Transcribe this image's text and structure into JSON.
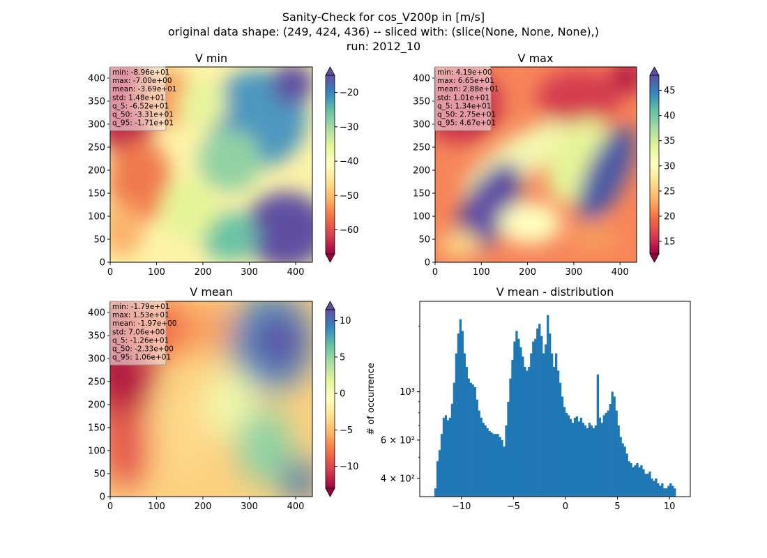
{
  "figure": {
    "title_lines": [
      "Sanity-Check for cos_V200p in [m/s]",
      "original data shape: (249, 424, 436) -- sliced with: (slice(None, None, None),)",
      "run: 2012_10"
    ],
    "colormap": "Spectral"
  },
  "chart_data": [
    {
      "type": "heatmap",
      "title": "V min",
      "xlim": [
        0,
        436
      ],
      "ylim": [
        0,
        424
      ],
      "x_ticks": [
        "0",
        "100",
        "200",
        "300",
        "400"
      ],
      "y_ticks": [
        "0",
        "50",
        "100",
        "150",
        "200",
        "250",
        "300",
        "350",
        "400"
      ],
      "colorbar": {
        "range": [
          -67,
          -15
        ],
        "ticks": [
          "−60",
          "−50",
          "−40",
          "−30",
          "−20"
        ],
        "tick_values": [
          -60,
          -50,
          -40,
          -30,
          -20
        ],
        "extend": "both"
      },
      "stats": [
        "min: -8.96e+01",
        "max: -7.00e+00",
        "mean: -3.69e+01",
        "std: 1.48e+01",
        "q_5: -6.52e+01",
        "q_50: -3.31e+01",
        "q_95: -1.71e+01"
      ]
    },
    {
      "type": "heatmap",
      "title": "V max",
      "xlim": [
        0,
        436
      ],
      "ylim": [
        0,
        424
      ],
      "x_ticks": [
        "0",
        "100",
        "200",
        "300",
        "400"
      ],
      "y_ticks": [
        "0",
        "50",
        "100",
        "150",
        "200",
        "250",
        "300",
        "350",
        "400"
      ],
      "colorbar": {
        "range": [
          12.5,
          48
        ],
        "ticks": [
          "15",
          "20",
          "25",
          "30",
          "35",
          "40",
          "45"
        ],
        "tick_values": [
          15,
          20,
          25,
          30,
          35,
          40,
          45
        ],
        "extend": "both"
      },
      "stats": [
        "min: 4.19e+00",
        "max: 6.65e+01",
        "mean: 2.88e+01",
        "std: 1.01e+01",
        "q_5: 1.34e+01",
        "q_50: 2.75e+01",
        "q_95: 4.67e+01"
      ]
    },
    {
      "type": "heatmap",
      "title": "V mean",
      "xlim": [
        0,
        436
      ],
      "ylim": [
        0,
        424
      ],
      "x_ticks": [
        "0",
        "100",
        "200",
        "300",
        "400"
      ],
      "y_ticks": [
        "0",
        "50",
        "100",
        "150",
        "200",
        "250",
        "300",
        "350",
        "400"
      ],
      "colorbar": {
        "range": [
          -13,
          11.5
        ],
        "ticks": [
          "−10",
          "−5",
          "0",
          "5",
          "10"
        ],
        "tick_values": [
          -10,
          -5,
          0,
          5,
          10
        ],
        "extend": "both"
      },
      "stats": [
        "min: -1.79e+01",
        "max: 1.53e+01",
        "mean: -1.97e+00",
        "std: 7.06e+00",
        "q_5: -1.26e+01",
        "q_50: -2.33e+00",
        "q_95: 1.06e+01"
      ]
    },
    {
      "type": "bar",
      "title": "V mean - distribution",
      "ylabel": "# of occurrence",
      "xlim": [
        -14,
        12
      ],
      "ylim": [
        330,
        2600
      ],
      "yscale": "log",
      "x_ticks": [
        "−10",
        "−5",
        "0",
        "5",
        "10"
      ],
      "x_tick_values": [
        -10,
        -5,
        0,
        5,
        10
      ],
      "y_ticks": [
        "4 × 10²",
        "6 × 10²",
        "10³"
      ],
      "y_tick_values": [
        400,
        600,
        1000
      ],
      "bar_color": "#1f77b4",
      "bins": [
        [
          -12.6,
          360
        ],
        [
          -12.4,
          480
        ],
        [
          -12.2,
          540
        ],
        [
          -12.0,
          640
        ],
        [
          -11.8,
          760
        ],
        [
          -11.6,
          780
        ],
        [
          -11.4,
          740
        ],
        [
          -11.2,
          760
        ],
        [
          -11.0,
          880
        ],
        [
          -10.8,
          1100
        ],
        [
          -10.6,
          1500
        ],
        [
          -10.4,
          1850
        ],
        [
          -10.2,
          2150
        ],
        [
          -10.0,
          1900
        ],
        [
          -9.8,
          1500
        ],
        [
          -9.6,
          1300
        ],
        [
          -9.4,
          1150
        ],
        [
          -9.2,
          1100
        ],
        [
          -9.0,
          1080
        ],
        [
          -8.8,
          1050
        ],
        [
          -8.6,
          920
        ],
        [
          -8.4,
          820
        ],
        [
          -8.2,
          760
        ],
        [
          -8.0,
          720
        ],
        [
          -7.8,
          700
        ],
        [
          -7.6,
          680
        ],
        [
          -7.4,
          660
        ],
        [
          -7.2,
          650
        ],
        [
          -7.0,
          640
        ],
        [
          -6.8,
          640
        ],
        [
          -6.6,
          640
        ],
        [
          -6.4,
          620
        ],
        [
          -6.2,
          600
        ],
        [
          -6.0,
          560
        ],
        [
          -5.8,
          700
        ],
        [
          -5.6,
          900
        ],
        [
          -5.4,
          1150
        ],
        [
          -5.2,
          1400
        ],
        [
          -5.0,
          1700
        ],
        [
          -4.8,
          1900
        ],
        [
          -4.6,
          1750
        ],
        [
          -4.4,
          1600
        ],
        [
          -4.2,
          1450
        ],
        [
          -4.0,
          1300
        ],
        [
          -3.8,
          1250
        ],
        [
          -3.6,
          1300
        ],
        [
          -3.4,
          1500
        ],
        [
          -3.2,
          1700
        ],
        [
          -3.0,
          1750
        ],
        [
          -2.8,
          1950
        ],
        [
          -2.6,
          2050
        ],
        [
          -2.4,
          1800
        ],
        [
          -2.2,
          1500
        ],
        [
          -2.0,
          1650
        ],
        [
          -1.8,
          2250
        ],
        [
          -1.6,
          1850
        ],
        [
          -1.4,
          1500
        ],
        [
          -1.2,
          1300
        ],
        [
          -1.0,
          1500
        ],
        [
          -0.8,
          1250
        ],
        [
          -0.6,
          1100
        ],
        [
          -0.4,
          950
        ],
        [
          -0.2,
          850
        ],
        [
          0.0,
          800
        ],
        [
          0.2,
          780
        ],
        [
          0.4,
          750
        ],
        [
          0.6,
          720
        ],
        [
          0.8,
          760
        ],
        [
          1.0,
          770
        ],
        [
          1.2,
          730
        ],
        [
          1.4,
          760
        ],
        [
          1.6,
          720
        ],
        [
          1.8,
          700
        ],
        [
          2.0,
          680
        ],
        [
          2.2,
          720
        ],
        [
          2.4,
          700
        ],
        [
          2.6,
          680
        ],
        [
          2.8,
          700
        ],
        [
          3.0,
          1200
        ],
        [
          3.2,
          760
        ],
        [
          3.4,
          720
        ],
        [
          3.6,
          780
        ],
        [
          3.8,
          800
        ],
        [
          4.0,
          820
        ],
        [
          4.2,
          880
        ],
        [
          4.4,
          1000
        ],
        [
          4.6,
          950
        ],
        [
          4.8,
          820
        ],
        [
          5.0,
          700
        ],
        [
          5.2,
          620
        ],
        [
          5.4,
          580
        ],
        [
          5.6,
          560
        ],
        [
          5.8,
          520
        ],
        [
          6.0,
          480
        ],
        [
          6.2,
          470
        ],
        [
          6.4,
          450
        ],
        [
          6.6,
          460
        ],
        [
          6.8,
          470
        ],
        [
          7.0,
          450
        ],
        [
          7.2,
          460
        ],
        [
          7.4,
          440
        ],
        [
          7.6,
          420
        ],
        [
          7.8,
          420
        ],
        [
          8.0,
          430
        ],
        [
          8.2,
          400
        ],
        [
          8.4,
          390
        ],
        [
          8.6,
          400
        ],
        [
          8.8,
          380
        ],
        [
          9.0,
          370
        ],
        [
          9.2,
          380
        ],
        [
          9.4,
          360
        ],
        [
          9.6,
          360
        ],
        [
          9.8,
          370
        ],
        [
          10.0,
          380
        ],
        [
          10.2,
          370
        ],
        [
          10.4,
          360
        ]
      ],
      "bin_width": 0.2
    }
  ]
}
